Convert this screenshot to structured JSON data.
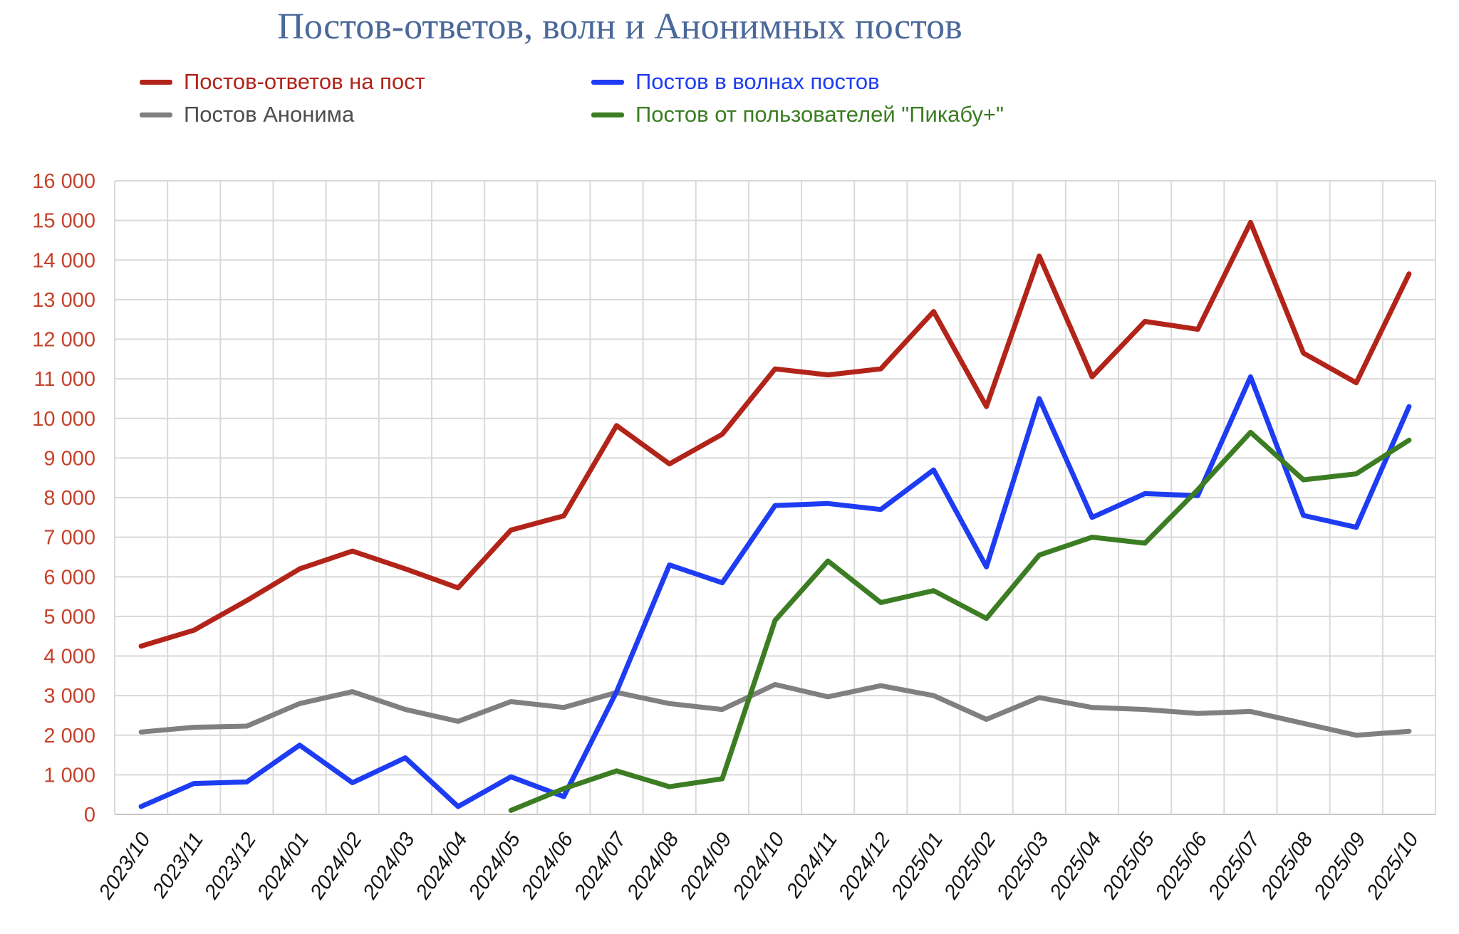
{
  "chart_data": {
    "type": "line",
    "title": "Постов-ответов, волн и Анонимных постов",
    "title_color": "#4a689a",
    "categories": [
      "2023/10",
      "2023/11",
      "2023/12",
      "2024/01",
      "2024/02",
      "2024/03",
      "2024/04",
      "2024/05",
      "2024/06",
      "2024/07",
      "2024/08",
      "2024/09",
      "2024/10",
      "2024/11",
      "2024/12",
      "2025/01",
      "2025/02",
      "2025/03",
      "2025/04",
      "2025/05",
      "2025/06",
      "2025/07",
      "2025/08",
      "2025/09",
      "2025/10"
    ],
    "series": [
      {
        "name": "Постов-ответов на пост",
        "color": "#b22419",
        "label_color": "#b22419",
        "values": [
          4250,
          4650,
          5400,
          6200,
          6650,
          6200,
          5720,
          7180,
          7540,
          9820,
          8850,
          9600,
          11250,
          11100,
          11250,
          12700,
          10300,
          14100,
          11050,
          12450,
          12250,
          14950,
          11650,
          10900,
          13650
        ]
      },
      {
        "name": "Постов в волнах постов",
        "color": "#1e3cf2",
        "label_color": "#1e3cf2",
        "values": [
          200,
          780,
          820,
          1750,
          800,
          1430,
          200,
          950,
          450,
          3100,
          6300,
          5850,
          7800,
          7850,
          7700,
          8700,
          6250,
          10500,
          7500,
          8100,
          8050,
          11050,
          7550,
          7250,
          10300
        ]
      },
      {
        "name": "Постов Анонима",
        "color": "#808080",
        "label_color": "#4d4d4d",
        "values": [
          2080,
          2200,
          2230,
          2800,
          3100,
          2650,
          2350,
          2850,
          2700,
          3080,
          2800,
          2650,
          3280,
          2970,
          3250,
          3000,
          2400,
          2950,
          2700,
          2650,
          2550,
          2600,
          2300,
          2000,
          2100
        ]
      },
      {
        "name": "Постов от пользователей \"Пикабу+\"",
        "color": "#3c7d23",
        "label_color": "#3c7d23",
        "values": [
          null,
          null,
          null,
          null,
          null,
          null,
          null,
          100,
          650,
          1100,
          700,
          900,
          4900,
          6400,
          5350,
          5650,
          4950,
          6550,
          7000,
          6850,
          8200,
          9650,
          8450,
          8600,
          9450
        ]
      }
    ],
    "ylim": [
      0,
      16000
    ],
    "ytick_step": 1000,
    "ytick_labels": [
      "0",
      "1 000",
      "2 000",
      "3 000",
      "4 000",
      "5 000",
      "6 000",
      "7 000",
      "8 000",
      "9 000",
      "10 000",
      "11 000",
      "12 000",
      "13 000",
      "14 000",
      "15 000",
      "16 000"
    ],
    "ytick_color": "#c5422c",
    "xtick_color": "#141414",
    "grid_color": "#d9d9d9",
    "axis_color": "#c6c6c6",
    "grid": true,
    "legend_position": "top"
  }
}
